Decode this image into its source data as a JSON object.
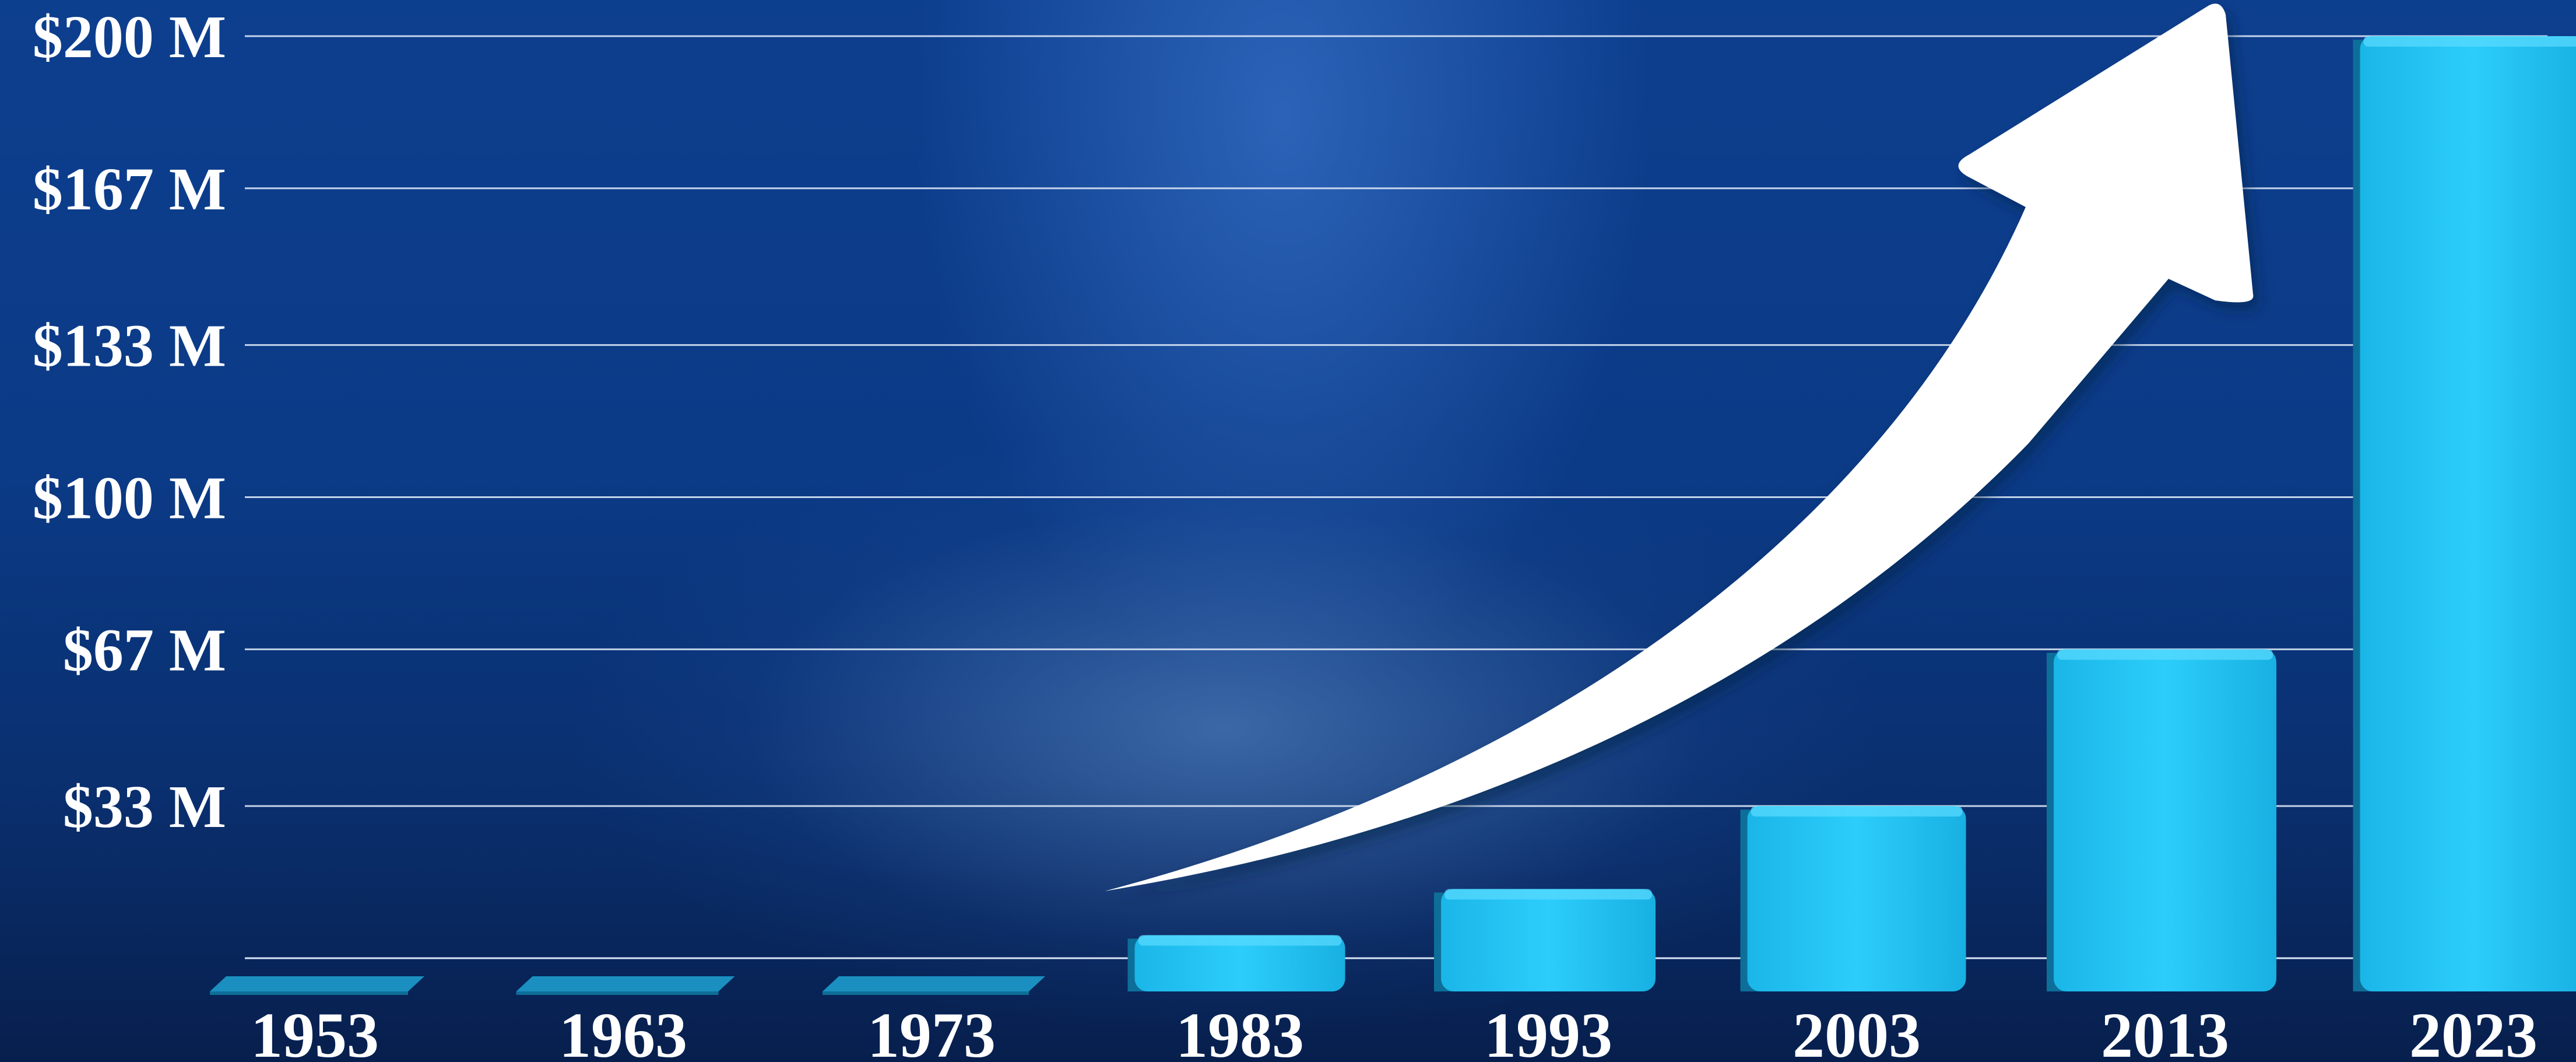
{
  "chart_data": {
    "type": "bar",
    "title": "",
    "xlabel": "",
    "ylabel": "",
    "categories": [
      "1953",
      "1963",
      "1973",
      "1983",
      "1993",
      "2003",
      "2013",
      "2023"
    ],
    "values": [
      0,
      0,
      0,
      5,
      15,
      33,
      67,
      200
    ],
    "ylim": [
      0,
      200
    ],
    "yticks": [
      {
        "value": 33,
        "label": "$33 M"
      },
      {
        "value": 67,
        "label": "$67 M"
      },
      {
        "value": 100,
        "label": "$100 M"
      },
      {
        "value": 133,
        "label": "$133 M"
      },
      {
        "value": 167,
        "label": "$167 M"
      },
      {
        "value": 200,
        "label": "$200 M"
      }
    ],
    "grid": true,
    "legend": "none",
    "annotation": "upward-arrow-icon",
    "colors": {
      "bar": "#19c3f5",
      "bar_side": "#0d6f99",
      "bar_top": "#5bdcff",
      "grid": "#d8e4f5",
      "text": "#ffffff"
    }
  }
}
